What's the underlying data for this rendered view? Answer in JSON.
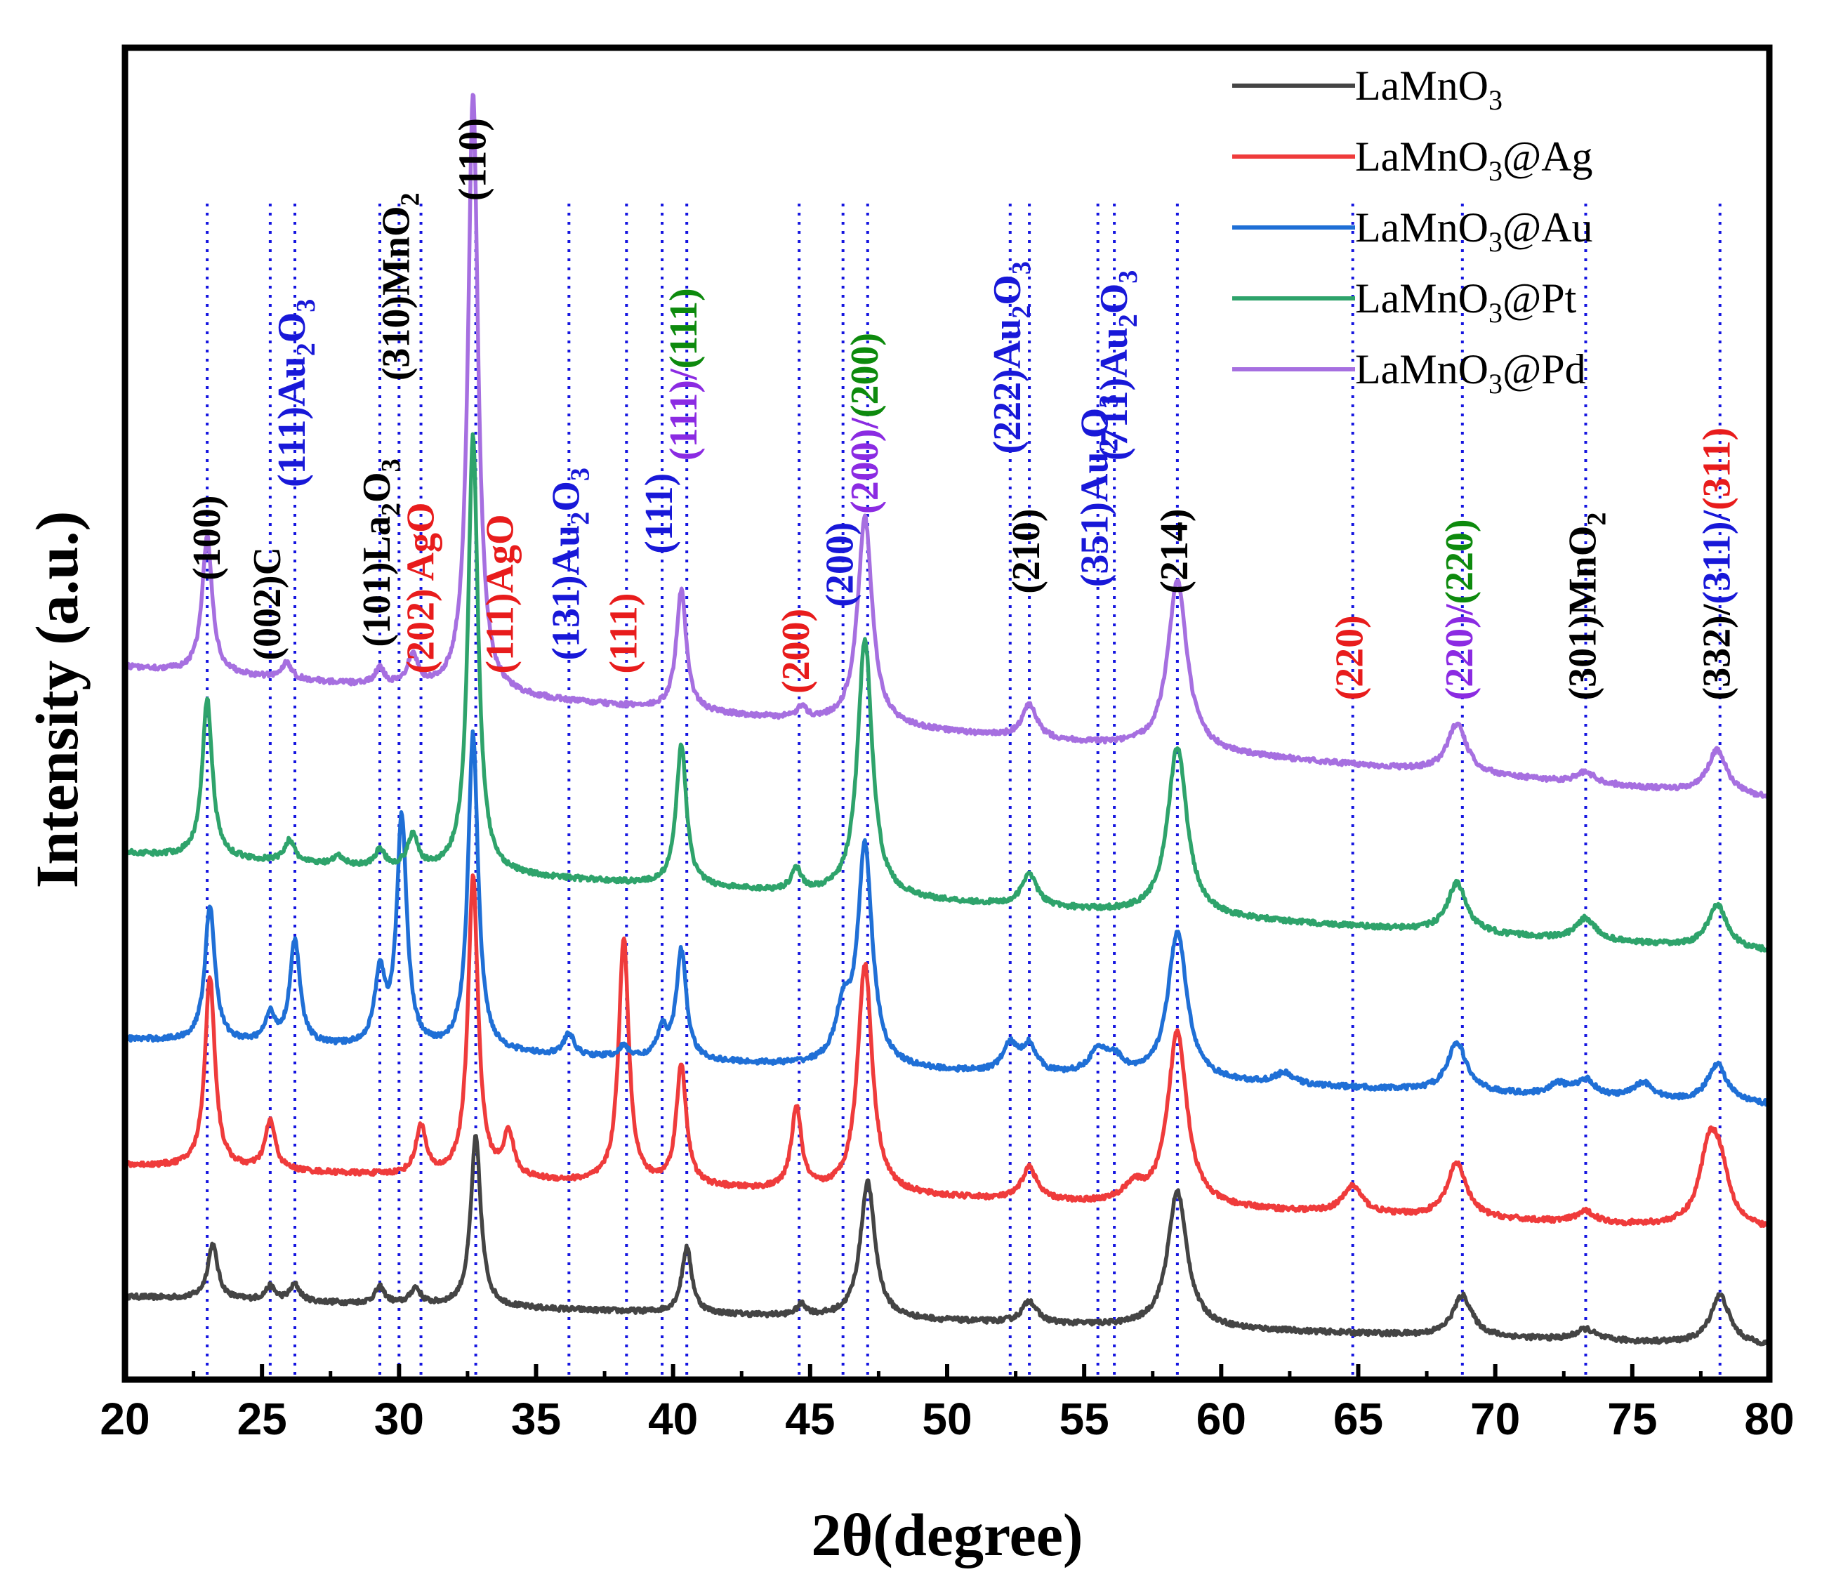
{
  "chart_data": {
    "type": "line",
    "title": "",
    "xlabel": "2θ(degree)",
    "ylabel": "Intensity (a.u.)",
    "xlim": [
      20,
      80
    ],
    "xticks": [
      20,
      25,
      30,
      35,
      40,
      45,
      50,
      55,
      60,
      65,
      70,
      75,
      80
    ],
    "yticks_shown": false,
    "legend_position": "top-right",
    "series": [
      {
        "name": "LaMnO₃",
        "color": "#444444",
        "baseline": 1.0,
        "slope": -0.0015,
        "peaks": [
          [
            23.2,
            1.0
          ],
          [
            25.3,
            0.25
          ],
          [
            26.2,
            0.3
          ],
          [
            29.3,
            0.3
          ],
          [
            30.6,
            0.3
          ],
          [
            32.8,
            3.1
          ],
          [
            40.5,
            1.2
          ],
          [
            44.7,
            0.2
          ],
          [
            47.1,
            2.5
          ],
          [
            53.0,
            0.4
          ],
          [
            58.4,
            2.5
          ],
          [
            68.8,
            0.75
          ],
          [
            73.3,
            0.2
          ],
          [
            78.2,
            0.9
          ]
        ]
      },
      {
        "name": "LaMnO₃@Ag",
        "color": "#ef3b3b",
        "baseline": 3.4,
        "slope": -0.002,
        "peaks": [
          [
            23.1,
            3.5
          ],
          [
            25.3,
            0.9
          ],
          [
            30.8,
            0.9
          ],
          [
            32.7,
            5.5
          ],
          [
            34.0,
            0.8
          ],
          [
            38.2,
            4.5
          ],
          [
            40.3,
            2.2
          ],
          [
            44.5,
            1.5
          ],
          [
            47.0,
            4.2
          ],
          [
            53.0,
            0.6
          ],
          [
            56.8,
            0.3
          ],
          [
            58.4,
            3.2
          ],
          [
            64.8,
            0.5
          ],
          [
            68.6,
            1.0
          ],
          [
            73.3,
            0.2
          ],
          [
            77.8,
            1.3
          ],
          [
            78.2,
            0.9
          ]
        ]
      },
      {
        "name": "LaMnO₃@Au",
        "color": "#1f6fd6",
        "baseline": 5.7,
        "slope": -0.002,
        "peaks": [
          [
            23.1,
            2.5
          ],
          [
            25.3,
            0.5
          ],
          [
            26.2,
            1.9
          ],
          [
            29.3,
            1.3
          ],
          [
            30.1,
            4.2
          ],
          [
            32.7,
            5.8
          ],
          [
            36.2,
            0.4
          ],
          [
            38.2,
            0.2
          ],
          [
            39.6,
            0.5
          ],
          [
            40.3,
            2.0
          ],
          [
            46.2,
            0.9
          ],
          [
            47.0,
            4.0
          ],
          [
            52.3,
            0.5
          ],
          [
            53.0,
            0.5
          ],
          [
            55.5,
            0.4
          ],
          [
            56.1,
            0.3
          ],
          [
            58.4,
            2.7
          ],
          [
            62.3,
            0.2
          ],
          [
            68.6,
            0.9
          ],
          [
            72.3,
            0.2
          ],
          [
            73.3,
            0.3
          ],
          [
            75.4,
            0.3
          ],
          [
            78.1,
            0.7
          ]
        ]
      },
      {
        "name": "LaMnO₃@Pt",
        "color": "#2ea36b",
        "baseline": 9.1,
        "slope": -0.003,
        "peaks": [
          [
            23.0,
            2.9
          ],
          [
            26.0,
            0.4
          ],
          [
            27.8,
            0.15
          ],
          [
            29.3,
            0.3
          ],
          [
            30.5,
            0.6
          ],
          [
            32.7,
            8.0
          ],
          [
            40.3,
            2.6
          ],
          [
            44.5,
            0.4
          ],
          [
            47.0,
            4.7
          ],
          [
            53.0,
            0.6
          ],
          [
            58.4,
            3.1
          ],
          [
            68.6,
            0.9
          ],
          [
            73.3,
            0.4
          ],
          [
            78.1,
            0.8
          ]
        ]
      },
      {
        "name": "LaMnO₃@Pd",
        "color": "#a66fe0",
        "baseline": 12.5,
        "slope": -0.004,
        "peaks": [
          [
            23.0,
            2.5
          ],
          [
            25.9,
            0.3
          ],
          [
            29.3,
            0.3
          ],
          [
            30.5,
            0.6
          ],
          [
            32.7,
            11.0
          ],
          [
            40.3,
            2.2
          ],
          [
            44.7,
            0.2
          ],
          [
            47.0,
            3.8
          ],
          [
            53.0,
            0.6
          ],
          [
            58.4,
            3.1
          ],
          [
            68.6,
            0.9
          ],
          [
            73.3,
            0.2
          ],
          [
            78.1,
            0.8
          ]
        ]
      }
    ],
    "reference_lines": [
      23.0,
      25.3,
      26.2,
      29.3,
      30.0,
      30.8,
      32.8,
      36.2,
      38.3,
      39.6,
      40.5,
      44.6,
      46.2,
      47.1,
      52.3,
      53.0,
      55.5,
      56.1,
      58.4,
      64.8,
      68.8,
      73.3,
      78.2
    ],
    "annotations": [
      {
        "x": 23.1,
        "y_level": 0.4,
        "parts": [
          {
            "text": "(100)",
            "color": "#000000"
          }
        ]
      },
      {
        "x": 25.3,
        "y_level": 0.46,
        "parts": [
          {
            "text": "(002)C",
            "color": "#000000"
          }
        ]
      },
      {
        "x": 26.2,
        "y_level": 0.33,
        "parts": [
          {
            "text": "(111)Au",
            "color": "#1818d8"
          },
          {
            "text": "2",
            "color": "#1818d8",
            "sub": true
          },
          {
            "text": "O",
            "color": "#1818d8"
          },
          {
            "text": "3",
            "color": "#1818d8",
            "sub": true
          }
        ]
      },
      {
        "x": 29.3,
        "y_level": 0.45,
        "parts": [
          {
            "text": "(101)La",
            "color": "#000000"
          },
          {
            "text": "2",
            "color": "#000000",
            "sub": true
          },
          {
            "text": "O",
            "color": "#000000"
          },
          {
            "text": "3",
            "color": "#000000",
            "sub": true
          }
        ]
      },
      {
        "x": 30.0,
        "y_level": 0.25,
        "parts": [
          {
            "text": "(310)MnO",
            "color": "#000000"
          },
          {
            "text": "2",
            "color": "#000000",
            "sub": true
          }
        ]
      },
      {
        "x": 30.9,
        "y_level": 0.47,
        "parts": [
          {
            "text": "(202) AgO",
            "color": "#e81c1c"
          }
        ]
      },
      {
        "x": 32.8,
        "y_level": 0.115,
        "parts": [
          {
            "text": "(110)",
            "color": "#000000"
          }
        ]
      },
      {
        "x": 33.8,
        "y_level": 0.47,
        "parts": [
          {
            "text": "(111)AgO",
            "color": "#e81c1c"
          }
        ]
      },
      {
        "x": 36.2,
        "y_level": 0.46,
        "parts": [
          {
            "text": "(131)Au",
            "color": "#1818d8"
          },
          {
            "text": "2",
            "color": "#1818d8",
            "sub": true
          },
          {
            "text": "O",
            "color": "#1818d8"
          },
          {
            "text": "3",
            "color": "#1818d8",
            "sub": true
          }
        ]
      },
      {
        "x": 38.3,
        "y_level": 0.47,
        "parts": [
          {
            "text": "(111)",
            "color": "#e81c1c"
          }
        ]
      },
      {
        "x": 39.6,
        "y_level": 0.38,
        "parts": [
          {
            "text": "(111)",
            "color": "#1818d8"
          }
        ]
      },
      {
        "x": 40.5,
        "y_level": 0.31,
        "parts": [
          {
            "text": "(111)/",
            "color": "#8b2be2"
          },
          {
            "text": "(111)",
            "color": "#0d8a0d"
          }
        ]
      },
      {
        "x": 44.6,
        "y_level": 0.485,
        "parts": [
          {
            "text": "(200)",
            "color": "#e81c1c"
          }
        ]
      },
      {
        "x": 46.2,
        "y_level": 0.42,
        "parts": [
          {
            "text": "(200)",
            "color": "#1818d8"
          }
        ]
      },
      {
        "x": 47.1,
        "y_level": 0.35,
        "parts": [
          {
            "text": "(200)/",
            "color": "#8b2be2"
          },
          {
            "text": "(200)",
            "color": "#0d8a0d"
          }
        ]
      },
      {
        "x": 52.3,
        "y_level": 0.305,
        "parts": [
          {
            "text": "(222)Au",
            "color": "#1818d8"
          },
          {
            "text": "2",
            "color": "#1818d8",
            "sub": true
          },
          {
            "text": "O",
            "color": "#1818d8"
          },
          {
            "text": "3",
            "color": "#1818d8",
            "sub": true
          }
        ]
      },
      {
        "x": 53.0,
        "y_level": 0.41,
        "parts": [
          {
            "text": "(210)",
            "color": "#000000"
          }
        ]
      },
      {
        "x": 55.5,
        "y_level": 0.405,
        "parts": [
          {
            "text": "(351)Au",
            "color": "#1818d8"
          },
          {
            "text": "2",
            "color": "#1818d8",
            "sub": true
          },
          {
            "text": "O",
            "color": "#1818d8"
          },
          {
            "text": "3",
            "color": "#1818d8",
            "sub": true
          }
        ]
      },
      {
        "x": 56.2,
        "y_level": 0.31,
        "parts": [
          {
            "text": "(711)Au",
            "color": "#1818d8"
          },
          {
            "text": "2",
            "color": "#1818d8",
            "sub": true
          },
          {
            "text": "O",
            "color": "#1818d8"
          },
          {
            "text": "3",
            "color": "#1818d8",
            "sub": true
          }
        ]
      },
      {
        "x": 58.4,
        "y_level": 0.41,
        "parts": [
          {
            "text": "(214)",
            "color": "#000000"
          }
        ]
      },
      {
        "x": 64.8,
        "y_level": 0.49,
        "parts": [
          {
            "text": "(220)",
            "color": "#e81c1c"
          }
        ]
      },
      {
        "x": 68.8,
        "y_level": 0.49,
        "parts": [
          {
            "text": "(220)/",
            "color": "#8b2be2"
          },
          {
            "text": "(220)",
            "color": "#0d8a0d"
          }
        ]
      },
      {
        "x": 73.3,
        "y_level": 0.49,
        "parts": [
          {
            "text": "(301)MnO",
            "color": "#000000"
          },
          {
            "text": "2",
            "color": "#000000",
            "sub": true
          }
        ]
      },
      {
        "x": 78.2,
        "y_level": 0.49,
        "parts": [
          {
            "text": "(332)/",
            "color": "#000000"
          },
          {
            "text": "(311)/",
            "color": "#1818d8"
          },
          {
            "text": "(311)",
            "color": "#e81c1c"
          }
        ]
      }
    ]
  }
}
